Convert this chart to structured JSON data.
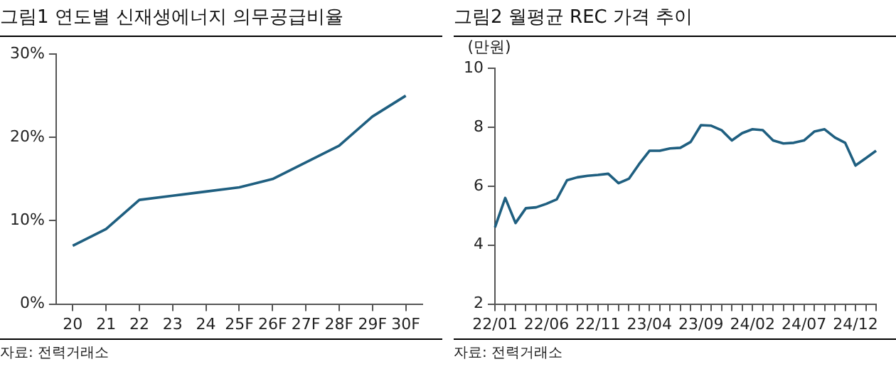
{
  "chart_data": [
    {
      "type": "line",
      "title": "그림1 연도별 신재생에너지 의무공급비율",
      "categories": [
        "20",
        "21",
        "22",
        "23",
        "24",
        "25F",
        "26F",
        "27F",
        "28F",
        "29F",
        "30F"
      ],
      "series": [
        {
          "color": "#1f5f80",
          "values": [
            7,
            9,
            12.5,
            13,
            13.5,
            14,
            15,
            17,
            19,
            22.5,
            25
          ]
        }
      ],
      "ylim": [
        0,
        30
      ],
      "yticks": [
        {
          "value": 0,
          "label": "0%"
        },
        {
          "value": 10,
          "label": "10%"
        },
        {
          "value": 20,
          "label": "20%"
        },
        {
          "value": 30,
          "label": "30%"
        }
      ],
      "legend": false,
      "grid": false,
      "marker": "none",
      "annotations": [
        "자료: 전력거래소"
      ]
    },
    {
      "type": "line",
      "title": "그림2 월평균 REC 가격 추이",
      "ylabel": "(만원)",
      "categories": [
        "22/01",
        null,
        null,
        null,
        null,
        "22/06",
        null,
        null,
        null,
        null,
        "22/11",
        null,
        null,
        null,
        null,
        "23/04",
        null,
        null,
        null,
        null,
        "23/09",
        null,
        null,
        null,
        null,
        "24/02",
        null,
        null,
        null,
        null,
        "24/07",
        null,
        null,
        null,
        null,
        "24/12",
        null,
        null
      ],
      "series": [
        {
          "color": "#1f5f80",
          "values": [
            4.6,
            5.6,
            4.75,
            5.25,
            5.28,
            5.4,
            5.55,
            6.2,
            6.3,
            6.35,
            6.38,
            6.42,
            6.1,
            6.25,
            6.75,
            7.2,
            7.2,
            7.28,
            7.3,
            7.5,
            8.07,
            8.05,
            7.9,
            7.55,
            7.8,
            7.93,
            7.9,
            7.55,
            7.45,
            7.47,
            7.55,
            7.85,
            7.93,
            7.65,
            7.47,
            6.7,
            6.95,
            7.2
          ]
        }
      ],
      "ylim": [
        2,
        10
      ],
      "yticks": [
        2,
        4,
        6,
        8,
        10
      ],
      "legend": false,
      "grid": false,
      "marker": "none",
      "annotations": [
        "자료: 전력거래소"
      ]
    }
  ]
}
